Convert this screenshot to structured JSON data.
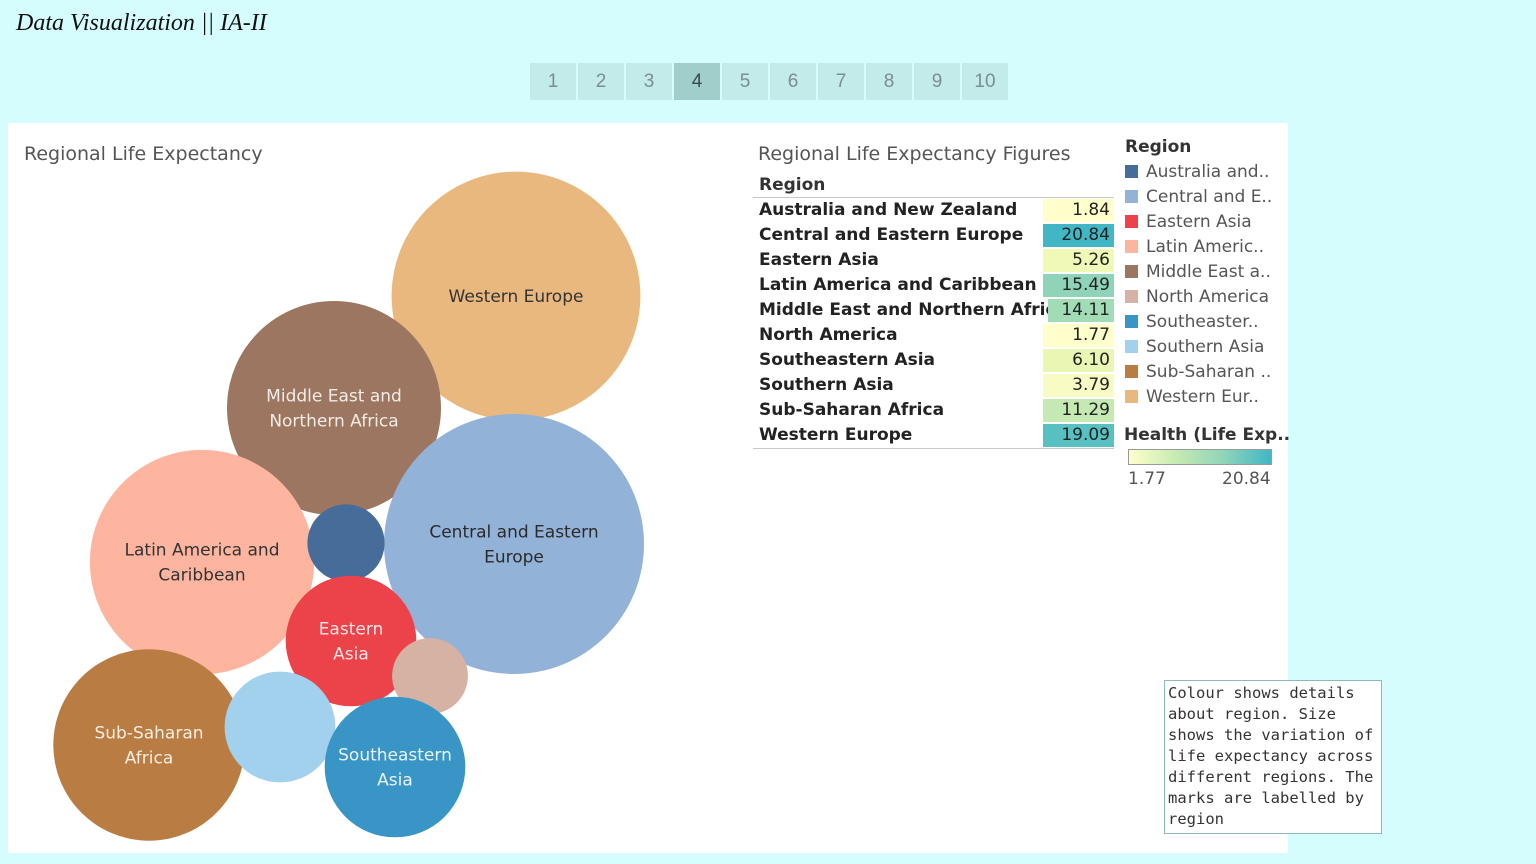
{
  "header": {
    "title": "Data Visualization || IA-II"
  },
  "pager": {
    "pages": [
      "1",
      "2",
      "3",
      "4",
      "5",
      "6",
      "7",
      "8",
      "9",
      "10"
    ],
    "active": "4"
  },
  "chart_data": [
    {
      "type": "bubble",
      "title": "Regional Life Expectancy",
      "bubbles": [
        {
          "region": "Western Europe",
          "label_lines": [
            "Western Europe"
          ],
          "value": 19.09,
          "color": "#e9b87e",
          "text_color": "#333333"
        },
        {
          "region": "Middle East and Northern Africa",
          "label_lines": [
            "Middle East and",
            "Northern Africa"
          ],
          "value": 14.11,
          "color": "#9c7660",
          "text_color": "#f3ece6"
        },
        {
          "region": "Central and Eastern Europe",
          "label_lines": [
            "Central and Eastern",
            "Europe"
          ],
          "value": 20.84,
          "color": "#92b2d8",
          "text_color": "#2a2a2a"
        },
        {
          "region": "Latin America and Caribbean",
          "label_lines": [
            "Latin America and",
            "Caribbean"
          ],
          "value": 15.49,
          "color": "#fdb5a0",
          "text_color": "#333333"
        },
        {
          "region": "Australia and New Zealand",
          "label_lines": [],
          "value": 1.84,
          "color": "#466c99",
          "text_color": "#ffffff"
        },
        {
          "region": "Eastern Asia",
          "label_lines": [
            "Eastern",
            "Asia"
          ],
          "value": 5.26,
          "color": "#ec434b",
          "text_color": "#fbe6e6"
        },
        {
          "region": "North America",
          "label_lines": [],
          "value": 1.77,
          "color": "#d6b2a4",
          "text_color": "#333333"
        },
        {
          "region": "Sub-Saharan Africa",
          "label_lines": [
            "Sub-Saharan",
            "Africa"
          ],
          "value": 11.29,
          "color": "#b97d44",
          "text_color": "#f7ede2"
        },
        {
          "region": "Southern Asia",
          "label_lines": [],
          "value": 3.79,
          "color": "#a1d1ec",
          "text_color": "#333333"
        },
        {
          "region": "Southeastern Asia",
          "label_lines": [
            "Southeastern",
            "Asia"
          ],
          "value": 6.1,
          "color": "#3895c5",
          "text_color": "#eaf4fa"
        }
      ]
    },
    {
      "type": "table",
      "title": "Regional Life Expectancy Figures",
      "column_header": "Region",
      "rows": [
        {
          "region": "Australia and New Zealand",
          "value": "1.84",
          "color": "#ffffcc"
        },
        {
          "region": "Central and Eastern Europe",
          "value": "20.84",
          "color": "#41b6c4"
        },
        {
          "region": "Eastern Asia",
          "value": "5.26",
          "color": "#f1f9b7"
        },
        {
          "region": "Latin America and Caribbean",
          "value": "15.49",
          "color": "#8fd4b9"
        },
        {
          "region": "Middle East and Northern Africa",
          "value": "14.11",
          "color": "#a2dcb6"
        },
        {
          "region": "North America",
          "value": "1.77",
          "color": "#ffffcc"
        },
        {
          "region": "Southeastern Asia",
          "value": "6.10",
          "color": "#eaf7b4"
        },
        {
          "region": "Southern Asia",
          "value": "3.79",
          "color": "#f8fbc4"
        },
        {
          "region": "Sub-Saharan Africa",
          "value": "11.29",
          "color": "#c4e9b3"
        },
        {
          "region": "Western Europe",
          "value": "19.09",
          "color": "#58c0c1"
        }
      ]
    }
  ],
  "legend": {
    "title": "Region",
    "items": [
      {
        "label": "Australia and..",
        "color": "#466c99"
      },
      {
        "label": "Central and E..",
        "color": "#92b2d8"
      },
      {
        "label": "Eastern Asia",
        "color": "#ec434b"
      },
      {
        "label": "Latin Americ..",
        "color": "#fdb5a0"
      },
      {
        "label": "Middle East a..",
        "color": "#9c7660"
      },
      {
        "label": "North America",
        "color": "#d6b2a4"
      },
      {
        "label": "Southeaster..",
        "color": "#3895c5"
      },
      {
        "label": "Southern Asia",
        "color": "#a1d1ec"
      },
      {
        "label": "Sub-Saharan ..",
        "color": "#b97d44"
      },
      {
        "label": "Western Eur..",
        "color": "#e9b87e"
      }
    ]
  },
  "color_scale": {
    "title": "Health (Life Exp..",
    "min_label": "1.77",
    "max_label": "20.84",
    "low_color": "#ffffcc",
    "high_color": "#41b6c4"
  },
  "caption": {
    "text": "Colour shows details about region. Size shows the variation of life expectancy across different regions. The marks are labelled by region"
  }
}
